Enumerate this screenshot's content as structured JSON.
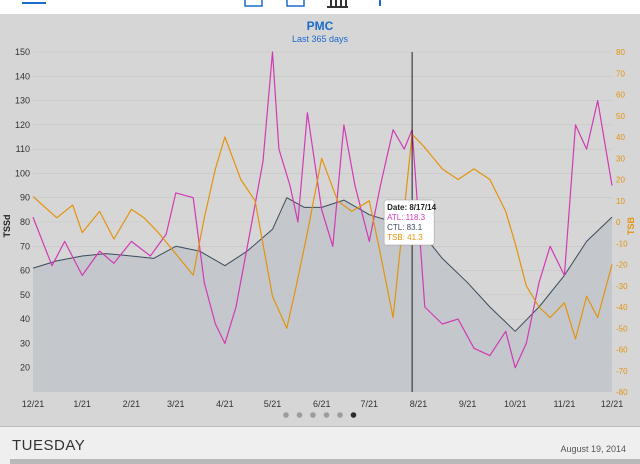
{
  "toolbar": {
    "icons": [
      "menu-icon",
      "calendar-icon",
      "view-icon",
      "bar-chart-icon",
      "plus-icon"
    ]
  },
  "colors": {
    "title": "#1b6bc9",
    "atl": "#d23ab5",
    "ctl": "#3b4c5c",
    "tsb": "#e3940e",
    "ctl_fill": "#c1c4c9",
    "background": "#d6d6d6"
  },
  "chart_data": {
    "type": "line",
    "title": "PMC",
    "subtitle": "Last 365 days",
    "ylabel": "TSSd",
    "y2label": "TSB",
    "ylim": [
      10,
      150
    ],
    "y2lim": [
      -80,
      80
    ],
    "yticks": [
      20,
      30,
      40,
      50,
      60,
      70,
      80,
      90,
      100,
      110,
      120,
      130,
      140,
      150
    ],
    "y2ticks": [
      -80,
      -70,
      -60,
      -50,
      -40,
      -30,
      -20,
      -10,
      0,
      10,
      20,
      30,
      40,
      50,
      60,
      70,
      80
    ],
    "xlim": [
      "2013-12-21",
      "2014-12-21"
    ],
    "xticks": [
      "12/21",
      "1/21",
      "2/21",
      "3/21",
      "4/21",
      "5/21",
      "6/21",
      "7/21",
      "8/21",
      "9/21",
      "10/21",
      "11/21",
      "12/21"
    ],
    "series": [
      {
        "name": "CTL",
        "axis": "left",
        "x": [
          "2013-12-21",
          "2014-01-05",
          "2014-01-21",
          "2014-02-05",
          "2014-02-21",
          "2014-03-07",
          "2014-03-21",
          "2014-04-05",
          "2014-04-21",
          "2014-05-05",
          "2014-05-21",
          "2014-05-30",
          "2014-06-10",
          "2014-06-21",
          "2014-07-05",
          "2014-07-21",
          "2014-08-05",
          "2014-08-17",
          "2014-08-25",
          "2014-09-05",
          "2014-09-21",
          "2014-10-05",
          "2014-10-21",
          "2014-11-05",
          "2014-11-21",
          "2014-12-05",
          "2014-12-21"
        ],
        "y": [
          61,
          64,
          66,
          67,
          66,
          65,
          70,
          68,
          62,
          68,
          77,
          90,
          86,
          86,
          89,
          83,
          80,
          83,
          74,
          65,
          55,
          45,
          35,
          45,
          58,
          72,
          82
        ]
      },
      {
        "name": "ATL",
        "axis": "left",
        "x": [
          "2013-12-21",
          "2014-01-02",
          "2014-01-10",
          "2014-01-21",
          "2014-02-01",
          "2014-02-10",
          "2014-02-21",
          "2014-03-05",
          "2014-03-15",
          "2014-03-21",
          "2014-04-01",
          "2014-04-08",
          "2014-04-15",
          "2014-04-21",
          "2014-04-28",
          "2014-05-08",
          "2014-05-15",
          "2014-05-21",
          "2014-05-25",
          "2014-06-01",
          "2014-06-06",
          "2014-06-12",
          "2014-06-21",
          "2014-06-28",
          "2014-07-05",
          "2014-07-12",
          "2014-07-21",
          "2014-07-28",
          "2014-08-05",
          "2014-08-12",
          "2014-08-17",
          "2014-08-25",
          "2014-09-05",
          "2014-09-15",
          "2014-09-25",
          "2014-10-05",
          "2014-10-15",
          "2014-10-21",
          "2014-10-28",
          "2014-11-05",
          "2014-11-12",
          "2014-11-21",
          "2014-11-28",
          "2014-12-05",
          "2014-12-12",
          "2014-12-21"
        ],
        "y": [
          82,
          62,
          72,
          58,
          68,
          63,
          72,
          66,
          75,
          92,
          90,
          55,
          38,
          30,
          45,
          80,
          105,
          150,
          110,
          95,
          80,
          125,
          85,
          70,
          120,
          95,
          72,
          95,
          118,
          110,
          118,
          45,
          38,
          40,
          28,
          25,
          35,
          20,
          30,
          55,
          70,
          58,
          120,
          110,
          130,
          95
        ]
      },
      {
        "name": "TSB",
        "axis": "right",
        "x": [
          "2013-12-21",
          "2014-01-05",
          "2014-01-15",
          "2014-01-21",
          "2014-02-01",
          "2014-02-10",
          "2014-02-21",
          "2014-03-01",
          "2014-03-10",
          "2014-03-21",
          "2014-04-01",
          "2014-04-08",
          "2014-04-15",
          "2014-04-21",
          "2014-05-01",
          "2014-05-10",
          "2014-05-21",
          "2014-05-30",
          "2014-06-05",
          "2014-06-12",
          "2014-06-21",
          "2014-07-01",
          "2014-07-10",
          "2014-07-21",
          "2014-07-28",
          "2014-08-05",
          "2014-08-17",
          "2014-08-25",
          "2014-09-05",
          "2014-09-15",
          "2014-09-25",
          "2014-10-05",
          "2014-10-15",
          "2014-10-21",
          "2014-10-28",
          "2014-11-05",
          "2014-11-12",
          "2014-11-21",
          "2014-11-28",
          "2014-12-05",
          "2014-12-12",
          "2014-12-21"
        ],
        "y": [
          12,
          2,
          8,
          -5,
          5,
          -8,
          6,
          2,
          -5,
          -15,
          -25,
          2,
          25,
          40,
          20,
          10,
          -35,
          -50,
          -30,
          -5,
          30,
          10,
          5,
          10,
          -15,
          -45,
          41.3,
          35,
          25,
          20,
          25,
          20,
          5,
          -10,
          -30,
          -40,
          -45,
          -38,
          -55,
          -35,
          -45,
          -20
        ]
      }
    ],
    "tooltip": {
      "date_label": "Date: 8/17/14",
      "atl_label": "ATL: 118.3",
      "ctl_label": "CTL: 83.1",
      "tsb_label": "TSB: 41.3",
      "date": "2014-08-17"
    },
    "pager": {
      "count": 6,
      "active": 5
    }
  },
  "day_panel": {
    "day": "TUESDAY",
    "date": "August 19, 2014"
  }
}
